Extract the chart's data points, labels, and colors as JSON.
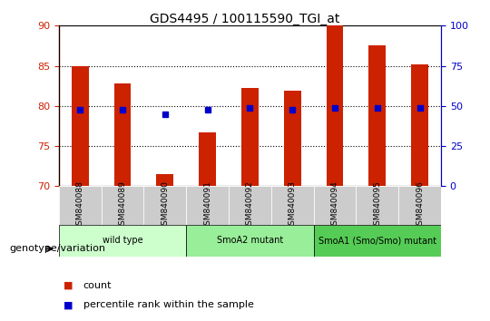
{
  "title": "GDS4495 / 100115590_TGI_at",
  "samples": [
    "GSM840088",
    "GSM840089",
    "GSM840090",
    "GSM840091",
    "GSM840092",
    "GSM840093",
    "GSM840094",
    "GSM840095",
    "GSM840096"
  ],
  "counts": [
    85.0,
    82.8,
    71.5,
    76.7,
    82.2,
    81.9,
    90.0,
    87.5,
    85.2
  ],
  "percentile_ranks": [
    79.5,
    79.5,
    79.0,
    79.5,
    79.8,
    79.5,
    79.8,
    79.8,
    79.8
  ],
  "ylim_left": [
    70,
    90
  ],
  "ylim_right": [
    0,
    100
  ],
  "yticks_left": [
    70,
    75,
    80,
    85,
    90
  ],
  "yticks_right": [
    0,
    25,
    50,
    75,
    100
  ],
  "bar_color": "#cc2200",
  "dot_color": "#0000cc",
  "bar_width": 0.4,
  "groups": [
    {
      "label": "wild type",
      "start": 0,
      "end": 2,
      "color": "#ccffcc"
    },
    {
      "label": "SmoA2 mutant",
      "start": 3,
      "end": 5,
      "color": "#99ee99"
    },
    {
      "label": "SmoA1 (Smo/Smo) mutant",
      "start": 6,
      "end": 8,
      "color": "#55cc55"
    }
  ],
  "legend_count_color": "#cc2200",
  "legend_dot_color": "#0000cc",
  "xlabel_genotype": "genotype/variation",
  "grid_color": "#000000",
  "grid_style": "dotted",
  "background_plot": "#ffffff",
  "background_xticklabels": "#cccccc",
  "left_axis_color": "#cc2200",
  "right_axis_color": "#0000cc"
}
